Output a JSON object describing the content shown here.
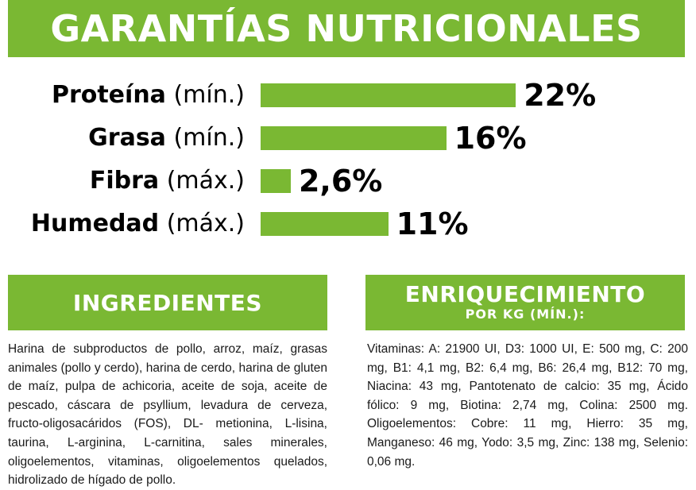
{
  "header": {
    "title": "GARANTÍAS NUTRICIONALES"
  },
  "nutrients": [
    {
      "name": "Proteína",
      "qualifier": "(mín.)",
      "value_text": "22%",
      "percent": 22
    },
    {
      "name": "Grasa",
      "qualifier": "(mín.)",
      "value_text": "16%",
      "percent": 16
    },
    {
      "name": "Fibra",
      "qualifier": "(máx.)",
      "value_text": "2,6%",
      "percent": 2.6
    },
    {
      "name": "Humedad",
      "qualifier": "(máx.)",
      "value_text": "11%",
      "percent": 11
    }
  ],
  "ingredients": {
    "heading": "INGREDIENTES",
    "text": "Harina de subproductos de pollo, arroz, maíz, grasas animales (pollo y cerdo), harina de cerdo, harina de gluten de maíz, pulpa de achicoria, aceite de soja, aceite de pescado, cáscara de psyllium, levadura de cerveza, fructo-oligosacáridos (FOS), DL- metionina, L-lisina, taurina, L-arginina, L-carnitina, sales minerales, oligoelementos, vitaminas, oligoelementos quelados, hidrolizado de hígado de pollo."
  },
  "enrichment": {
    "heading": "ENRIQUECIMIENTO",
    "subheading": "POR KG (MÍN.):",
    "text": "Vitaminas: A: 21900 UI, D3: 1000 UI, E: 500 mg, C: 200 mg, B1: 4,1 mg, B2: 6,4 mg, B6: 26,4 mg, B12: 70 mg, Niacina: 43 mg, Pantotenato de calcio: 35 mg, Ácido fólico: 9 mg, Biotina: 2,74 mg, Colina: 2500 mg. Oligoelementos: Cobre: 11 mg, Hierro: 35 mg, Manganeso: 46 mg, Yodo: 3,5 mg, Zinc: 138 mg, Selenio: 0,06 mg."
  },
  "colors": {
    "accent": "#7ab833",
    "text": "#000000"
  }
}
